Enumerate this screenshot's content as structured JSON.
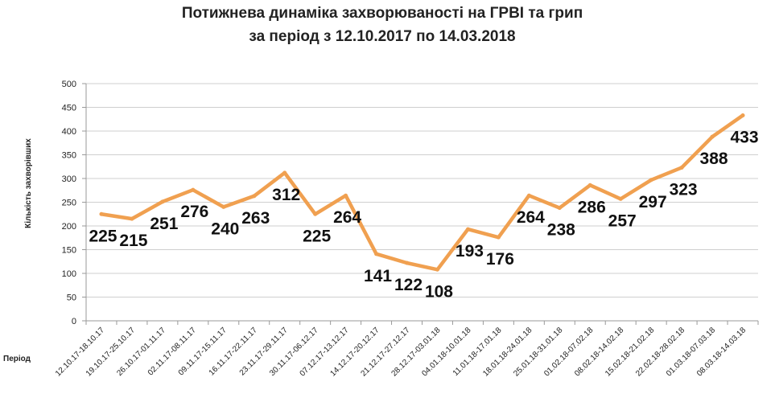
{
  "chart_data": {
    "type": "line",
    "title_lines": [
      "Потижнева динаміка захворюваності на ГРВІ та грип",
      "за період з 12.10.2017 по 14.03.2018"
    ],
    "xlabel": "Період",
    "ylabel": "Кількість захворівших",
    "ylim": [
      0,
      500
    ],
    "yticks": [
      0,
      50,
      100,
      150,
      200,
      250,
      300,
      350,
      400,
      450,
      500
    ],
    "grid": true,
    "line_color": "#F0A050",
    "categories": [
      "12.10.17-18.10.17",
      "19.10.17-25.10.17",
      "26.10.17-01.11.17",
      "02.11.17-08.11.17",
      "09.11.17-15.11.17",
      "16.11.17-22.11.17",
      "23.11.17-29.11.17",
      "30.11.17-06.12.17",
      "07.12.17-13.12.17",
      "14.12.17-20.12.17",
      "21.12.17-27.12.17",
      "28.12.17-03.01.18",
      "04.01.18-10.01.18",
      "11.01.18-17.01.18",
      "18.01.18-24.01.18",
      "25.01.18-31.01.18",
      "01.02.18-07.02.18",
      "08.02.18-14.02.18",
      "15.02.18-21.02.18",
      "22.02.18-28.02.18",
      "01.03.18-07.03.18",
      "08.03.18-14.03.18"
    ],
    "values": [
      225,
      215,
      251,
      276,
      240,
      263,
      312,
      225,
      264,
      141,
      122,
      108,
      193,
      176,
      264,
      238,
      286,
      257,
      297,
      323,
      388,
      433
    ]
  }
}
